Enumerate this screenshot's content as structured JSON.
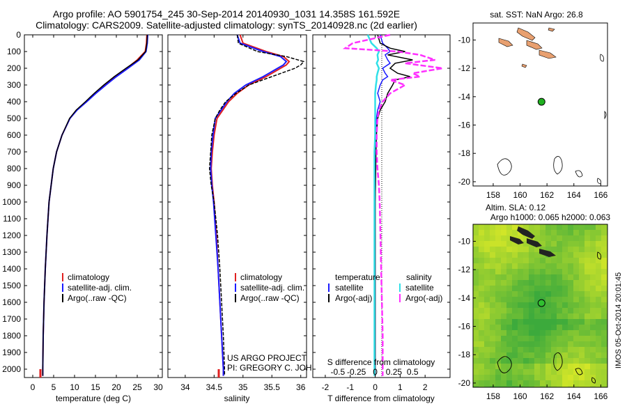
{
  "header": {
    "line1": "Argo profile: AO 5901754_245 30-Sep-2014 20140930_1031 14.358S 161.592E",
    "line2": "Climatology: CARS2009. Satellite-adjusted climatology: synTS_20140928.nc (2d earlier)"
  },
  "credits": {
    "project": "US ARGO PROJECT",
    "pi": "PI: GREGORY C. JOHNSON",
    "imos": "IMOS 05-Oct-2014 20:01:45"
  },
  "colors": {
    "climatology": "#e02020",
    "satellite": "#1a1aff",
    "argo": "#000000",
    "salinity_sat": "#30e0e8",
    "salinity_argo": "#ff30ff",
    "land": "#e8a070",
    "argo_dot": "#20b020"
  },
  "chart_data": [
    {
      "type": "line",
      "panel": "temperature",
      "xlabel": "temperature (deg C)",
      "ylabel": "",
      "xlim": [
        -2,
        31
      ],
      "ylim": [
        2050,
        0
      ],
      "xticks": [
        0,
        5,
        10,
        15,
        20,
        25,
        30
      ],
      "yticks": [
        0,
        100,
        200,
        300,
        400,
        500,
        600,
        700,
        800,
        900,
        1000,
        1100,
        1200,
        1300,
        1400,
        1500,
        1600,
        1700,
        1800,
        1900,
        2000
      ],
      "y": [
        0,
        50,
        100,
        150,
        200,
        250,
        300,
        350,
        400,
        450,
        500,
        600,
        700,
        800,
        900,
        1000,
        1200,
        1400,
        1600,
        1800,
        2000,
        2040
      ],
      "series": [
        {
          "name": "climatology",
          "values": [
            27.3,
            27.2,
            26.9,
            25.0,
            22.5,
            19.8,
            17.3,
            15.0,
            12.8,
            10.5,
            8.9,
            7.0,
            5.7,
            4.9,
            4.4,
            3.9,
            3.4,
            3.0,
            2.7,
            2.5,
            2.4,
            2.4
          ]
        },
        {
          "name": "satellite-adj. clim.",
          "values": [
            27.5,
            27.4,
            27.1,
            25.5,
            22.8,
            20.0,
            17.5,
            15.1,
            12.9,
            10.6,
            8.9,
            7.0,
            5.7,
            4.9,
            4.4,
            3.9,
            3.4,
            3.0,
            2.7,
            2.5,
            2.4,
            2.4
          ]
        },
        {
          "name": "Argo(..raw -QC)",
          "values": [
            27.4,
            27.3,
            27.0,
            25.2,
            22.3,
            19.5,
            17.0,
            14.7,
            12.6,
            10.4,
            8.8,
            7.0,
            5.7,
            4.9,
            4.4,
            3.9,
            3.4,
            3.0,
            2.7,
            2.5,
            2.4,
            2.4
          ]
        }
      ],
      "legend": [
        "climatology",
        "satellite-adj. clim.",
        "Argo(..raw -QC)"
      ]
    },
    {
      "type": "line",
      "panel": "salinity",
      "xlabel": "salinity",
      "ylabel": "",
      "xlim": [
        33.7,
        36.1
      ],
      "ylim": [
        2050,
        0
      ],
      "xticks": [
        34,
        34.5,
        35,
        35.5,
        36
      ],
      "y": [
        0,
        50,
        100,
        130,
        160,
        180,
        200,
        250,
        300,
        350,
        400,
        450,
        500,
        600,
        700,
        800,
        900,
        1000,
        1200,
        1400,
        1600,
        1800,
        2000,
        2040
      ],
      "series": [
        {
          "name": "climatology",
          "values": [
            34.95,
            35.0,
            35.4,
            35.7,
            35.8,
            35.75,
            35.65,
            35.4,
            35.1,
            34.9,
            34.75,
            34.65,
            34.55,
            34.5,
            34.47,
            34.45,
            34.47,
            34.5,
            34.54,
            34.57,
            34.6,
            34.63,
            34.66,
            34.66
          ]
        },
        {
          "name": "satellite-adj. clim.",
          "values": [
            34.9,
            34.95,
            35.35,
            35.65,
            35.75,
            35.7,
            35.6,
            35.35,
            35.05,
            34.85,
            34.72,
            34.62,
            34.52,
            34.48,
            34.45,
            34.44,
            34.46,
            34.49,
            34.53,
            34.57,
            34.6,
            34.63,
            34.66,
            34.66
          ]
        },
        {
          "name": "Argo(..raw -QC)",
          "values": [
            34.9,
            34.92,
            35.25,
            35.75,
            36.05,
            36.0,
            35.9,
            35.5,
            35.1,
            34.88,
            34.7,
            34.6,
            34.52,
            34.46,
            34.44,
            34.42,
            34.45,
            34.5,
            34.56,
            34.6,
            34.63,
            34.66,
            34.68,
            34.68
          ]
        }
      ],
      "legend": [
        "climatology",
        "satellite-adj. clim.",
        "Argo(..raw -QC)"
      ]
    },
    {
      "type": "line",
      "panel": "difference",
      "xlabel": "T difference from climatology",
      "xlabel2": "S difference from climatology",
      "xlim": [
        -2.5,
        3.0
      ],
      "ylim": [
        2050,
        0
      ],
      "xticks": [
        -2,
        -1,
        0,
        1,
        2
      ],
      "xticks2": [
        -0.5,
        -0.25,
        0,
        0.25,
        0.5
      ],
      "xticks2_labels": [
        "-0.5",
        "-0.25",
        "0",
        "0.25",
        "0.5"
      ],
      "y": [
        0,
        50,
        80,
        100,
        120,
        150,
        170,
        200,
        230,
        250,
        270,
        300,
        350,
        400,
        450,
        500,
        600,
        700,
        800,
        900,
        1000,
        1200,
        1400,
        1600,
        1800,
        2000,
        2040
      ],
      "series": [
        {
          "name": "temperature satellite",
          "values": [
            0.2,
            0.3,
            0.5,
            0.6,
            0.4,
            0.5,
            0.6,
            0.3,
            0.4,
            0.5,
            0.3,
            0.2,
            0.1,
            0.2,
            0.1,
            0.05,
            0.02,
            0.02,
            0.01,
            0.01,
            0.0,
            0.0,
            0.0,
            0.0,
            0.0,
            0.0,
            0.0
          ]
        },
        {
          "name": "temperature Argo(-adj)",
          "values": [
            0.1,
            0.2,
            0.6,
            1.2,
            0.5,
            1.5,
            0.8,
            0.6,
            0.9,
            1.4,
            0.8,
            0.7,
            0.5,
            0.4,
            0.2,
            0.1,
            0.05,
            0.03,
            0.02,
            0.01,
            0.0,
            0.0,
            0.0,
            0.0,
            0.0,
            0.0,
            0.0
          ]
        },
        {
          "name": "salinity satellite",
          "values": [
            -0.1,
            -0.05,
            0.02,
            0.05,
            0.03,
            0.04,
            0.02,
            0.05,
            0.03,
            0.02,
            0.02,
            0.01,
            0.0,
            0.0,
            0.0,
            0.0,
            0.0,
            -0.01,
            -0.01,
            -0.01,
            -0.01,
            -0.01,
            -0.01,
            -0.01,
            -0.01,
            -0.01,
            -0.01
          ]
        },
        {
          "name": "salinity Argo(-adj)",
          "values": [
            0.2,
            -0.3,
            -0.4,
            0.3,
            0.6,
            0.8,
            0.4,
            0.9,
            0.5,
            0.6,
            0.2,
            0.4,
            0.2,
            0.1,
            0.05,
            0.03,
            0.02,
            0.02,
            0.03,
            0.05,
            0.06,
            0.07,
            0.08,
            0.09,
            0.1,
            0.1,
            0.1
          ]
        }
      ],
      "legend_titles": [
        "temperature",
        "salinity"
      ],
      "legend": [
        "satellite",
        "Argo(-adj)",
        "satellite",
        "Argo(-adj)"
      ]
    },
    {
      "type": "heatmap",
      "panel": "sst-map",
      "title": "sat. SST: NaN Argo: 26.8",
      "xlim": [
        156.5,
        166.5
      ],
      "ylim": [
        -20.3,
        -8.8
      ],
      "xticks": [
        158,
        160,
        162,
        164,
        166
      ],
      "yticks": [
        -10,
        -12,
        -14,
        -16,
        -18,
        -20
      ],
      "argo_lon": 161.592,
      "argo_lat": -14.358
    },
    {
      "type": "heatmap",
      "panel": "sla-map",
      "title": "Altim. SLA: 0.12",
      "subtitle": "Argo h1000: 0.065 h2000: 0.063",
      "xlim": [
        156.5,
        166.5
      ],
      "ylim": [
        -20.3,
        -8.8
      ],
      "xticks": [
        158,
        160,
        162,
        164,
        166
      ],
      "yticks": [
        -10,
        -12,
        -14,
        -16,
        -18,
        -20
      ],
      "argo_lon": 161.592,
      "argo_lat": -14.358
    }
  ]
}
